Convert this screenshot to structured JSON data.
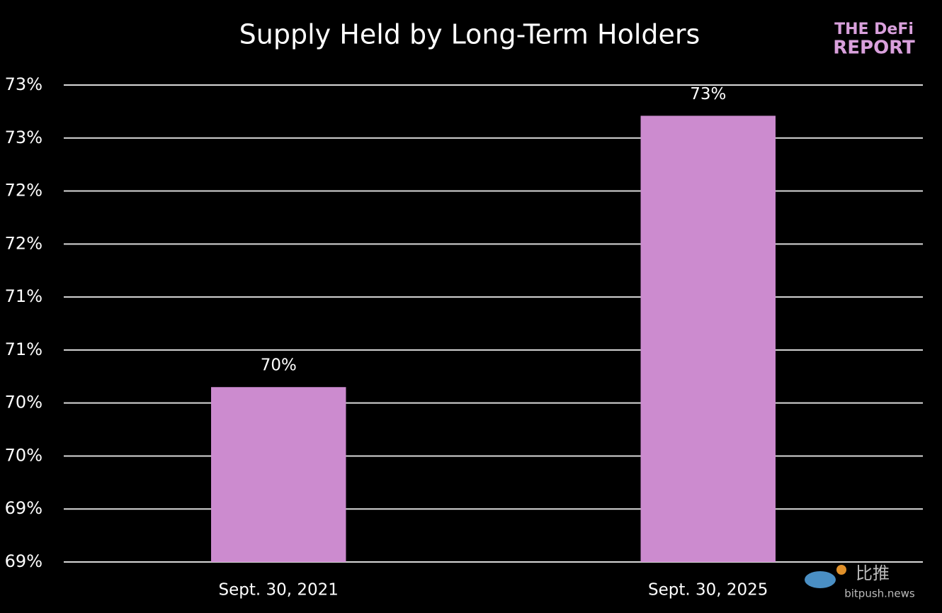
{
  "chart_data": {
    "type": "bar",
    "title": "Supply Held by Long-Term Holders",
    "categories": [
      "Sept. 30, 2021",
      "Sept. 30, 2025"
    ],
    "values": [
      70.45,
      73.01
    ],
    "value_labels": [
      "70%",
      "73%"
    ],
    "color": "#cc8bcf",
    "ylim": [
      68.8,
      73.3
    ],
    "yticks": [
      {
        "value": 68.8,
        "label": "69%"
      },
      {
        "value": 69.3,
        "label": "69%"
      },
      {
        "value": 69.8,
        "label": "70%"
      },
      {
        "value": 70.3,
        "label": "70%"
      },
      {
        "value": 70.8,
        "label": "71%"
      },
      {
        "value": 71.3,
        "label": "71%"
      },
      {
        "value": 71.8,
        "label": "72%"
      },
      {
        "value": 72.3,
        "label": "72%"
      },
      {
        "value": 72.8,
        "label": "73%"
      },
      {
        "value": 73.3,
        "label": "73%"
      }
    ],
    "grid": true
  },
  "logo": {
    "line1": "THE DeFi",
    "line2": "REPORT"
  },
  "watermark": {
    "name": "比推",
    "site": "bitpush.news"
  }
}
